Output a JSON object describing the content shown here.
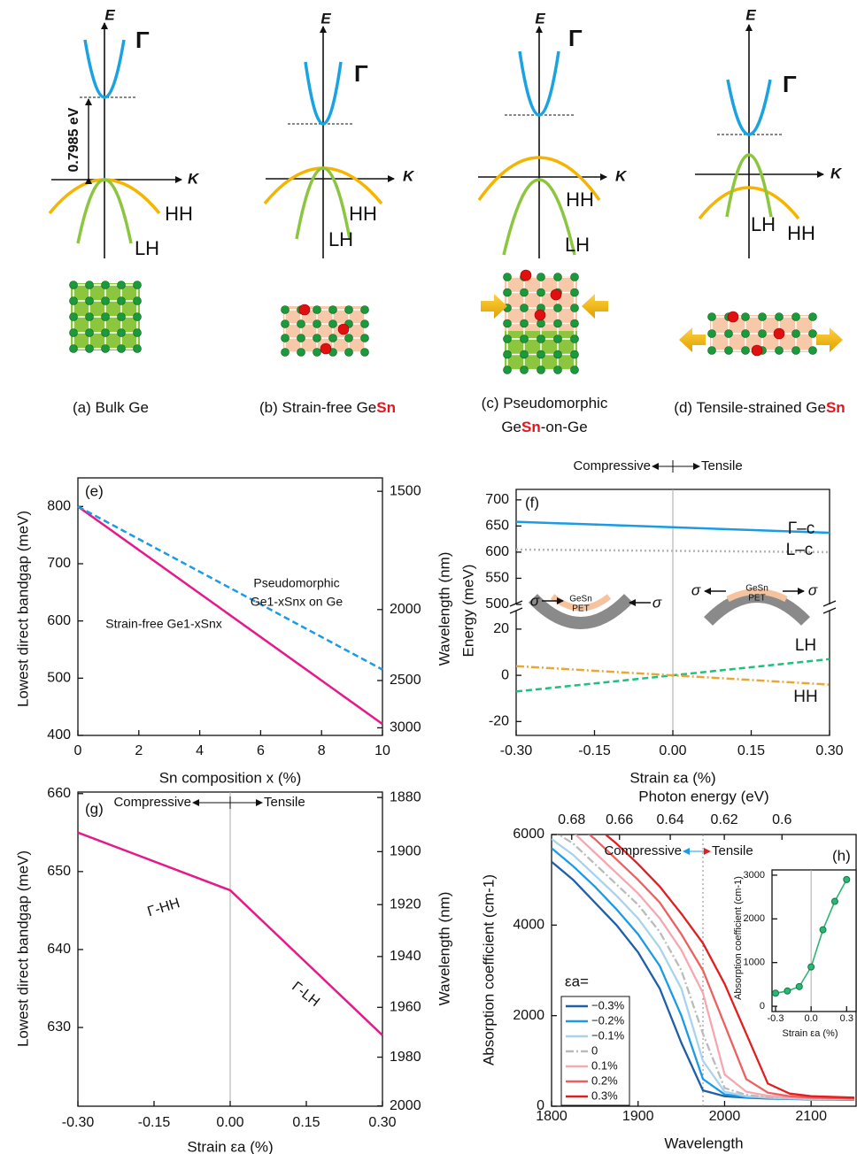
{
  "diagrams": [
    {
      "E": "E",
      "K": "K",
      "gamma": "Γ",
      "hh": "HH",
      "lh": "LH",
      "gap": "0.7985 eV",
      "caption": [
        [
          {
            "text": "(a) Bulk Ge"
          }
        ]
      ]
    },
    {
      "E": "E",
      "K": "K",
      "gamma": "Γ",
      "hh": "HH",
      "lh": "LH",
      "caption": [
        [
          {
            "text": "(b) Strain-free Ge"
          },
          {
            "text": "Sn",
            "color": "#e8141c"
          }
        ]
      ]
    },
    {
      "E": "E",
      "K": "K",
      "gamma": "Γ",
      "hh": "HH",
      "lh": "LH",
      "caption": [
        [
          {
            "text": "(c) Pseudomorphic"
          }
        ],
        [
          {
            "text": "Ge"
          },
          {
            "text": "Sn",
            "color": "#e8141c"
          },
          {
            "text": "-on-Ge"
          }
        ]
      ]
    },
    {
      "E": "E",
      "K": "K",
      "gamma": "Γ",
      "hh": "HH",
      "lh": "LH",
      "caption": [
        [
          {
            "text": "(d) Tensile-strained Ge"
          },
          {
            "text": "Sn",
            "color": "#e8141c"
          }
        ]
      ]
    }
  ],
  "chart_data": [
    {
      "type": "line",
      "label": "(e)",
      "xlabel": "Sn composition x (%)",
      "ylabel": "Lowest direct bandgap (meV)",
      "y2label": "Wavelength (nm)",
      "xlim": [
        0,
        10
      ],
      "xticks": [
        0,
        2,
        4,
        6,
        8,
        10
      ],
      "ylim": [
        400,
        850
      ],
      "yticks": [
        400,
        500,
        600,
        700,
        800
      ],
      "y2lim": [
        3099.6,
        1458.6
      ],
      "y2scale": "reciprocal",
      "y2ticks": [
        1500,
        2000,
        2500,
        3000
      ],
      "x": [
        0,
        10
      ],
      "series": [
        {
          "name": [
            "Strain-free Ge1-xSnx"
          ],
          "color": "#e6198a",
          "style": "solid",
          "values": [
            800,
            420
          ]
        },
        {
          "name": [
            "Pseudomorphic",
            "Ge1-xSnx on Ge"
          ],
          "color": "#1a9be6",
          "style": "dashed",
          "values": [
            800,
            515
          ]
        }
      ]
    },
    {
      "type": "line",
      "label": "(f)",
      "xlabel": "Strain εa (%)",
      "ylabel": "Energy (meV)",
      "compressive": "Compressive",
      "tensile": "Tensile",
      "xlim": [
        -0.3,
        0.3
      ],
      "xticks": [
        {
          "value": -0.3,
          "label": "-0.30"
        },
        -0.15,
        {
          "value": 0,
          "label": "0.00"
        },
        0.15,
        {
          "value": 0.3,
          "label": "0.30"
        }
      ],
      "x": [
        -0.3,
        0.3
      ],
      "inset_labels": {
        "sigma": "σ",
        "film": "GeSn",
        "substrate": "PET"
      },
      "panels": [
        {
          "ylim": [
            500,
            720
          ],
          "yticks": [
            500,
            550,
            600,
            650,
            700
          ],
          "series": [
            {
              "name": "Γ–c",
              "color": "#1a9be6",
              "style": "solid",
              "values": [
                658,
                637
              ]
            },
            {
              "name": "L–c",
              "color": "#b5b5b5",
              "style": "dotted",
              "values": [
                605,
                600
              ]
            }
          ]
        },
        {
          "ylim": [
            -26,
            28
          ],
          "yticks": [
            -20,
            0,
            20
          ],
          "series": [
            {
              "name": "LH",
              "color": "#1fbf7f",
              "style": "dashed",
              "values": [
                -7,
                7
              ]
            },
            {
              "name": "HH",
              "color": "#e8a838",
              "style": "dashdot",
              "values": [
                4,
                -4
              ]
            }
          ]
        }
      ]
    },
    {
      "type": "line",
      "label": "(g)",
      "xlabel": "Strain εa (%)",
      "ylabel": "Lowest direct bandgap (meV)",
      "y2label": "Wavelength (nm)",
      "compressive": "Compressive",
      "tensile": "Tensile",
      "xlim": [
        -0.3,
        0.3
      ],
      "xticks": [
        {
          "value": -0.3,
          "label": "-0.30"
        },
        -0.15,
        {
          "value": 0,
          "label": "0.00"
        },
        0.15,
        {
          "value": 0.3,
          "label": "0.30"
        }
      ],
      "ylim": [
        619.9,
        660.2
      ],
      "yticks": [
        630,
        640,
        650,
        660
      ],
      "y2lim": [
        2000.1,
        1878
      ],
      "y2scale": "reciprocal",
      "y2ticks": [
        1880,
        1900,
        1920,
        1940,
        1960,
        1980,
        2000
      ],
      "x": [
        -0.3,
        0,
        0.3
      ],
      "series": [
        {
          "color": "#e6198a",
          "style": "solid",
          "values": [
            655,
            647.6,
            629
          ]
        }
      ],
      "segment_labels": [
        "Γ-HH",
        "Γ-LH"
      ]
    },
    {
      "type": "line",
      "label": "(h)",
      "xlabel": "Wavelength",
      "x2label": "Photon energy (eV)",
      "ylabel": "Absorption coefficient (cm-1)",
      "compressive": "Compressive",
      "tensile": "Tensile",
      "legend_title": "εa=",
      "legend": "lower left",
      "xlim": [
        1800,
        2152
      ],
      "xticks": [
        1800,
        1900,
        2000,
        2100
      ],
      "x2lim": [
        0.6888,
        0.5761
      ],
      "x2scale": "reciprocal",
      "x2ticks": [
        0.68,
        0.66,
        0.64,
        0.62,
        0.6
      ],
      "ylim": [
        0,
        6000
      ],
      "yticks": [
        0,
        2000,
        4000,
        6000
      ],
      "marker_x": 1975,
      "x": [
        1800,
        1825,
        1850,
        1875,
        1900,
        1925,
        1950,
        1975,
        2000,
        2025,
        2050,
        2075,
        2100,
        2150
      ],
      "series": [
        {
          "name": "−0.3%",
          "color": "#1f5fa8",
          "style": "solid",
          "values": [
            5400,
            5000,
            4500,
            4000,
            3400,
            2600,
            1400,
            350,
            220,
            190,
            170,
            160,
            150,
            140
          ]
        },
        {
          "name": "−0.2%",
          "color": "#1a9be6",
          "style": "solid",
          "values": [
            5700,
            5300,
            4850,
            4350,
            3800,
            3100,
            2000,
            600,
            260,
            200,
            180,
            165,
            155,
            145
          ]
        },
        {
          "name": "−0.1%",
          "color": "#a8d3ee",
          "style": "solid",
          "values": [
            5900,
            5550,
            5100,
            4650,
            4150,
            3500,
            2600,
            1000,
            320,
            220,
            190,
            170,
            160,
            150
          ]
        },
        {
          "name": "0",
          "color": "#bbbbbb",
          "style": "dashdot",
          "values": [
            6100,
            5800,
            5350,
            4900,
            4450,
            3850,
            3000,
            1600,
            400,
            250,
            200,
            180,
            165,
            155
          ]
        },
        {
          "name": "0.1%",
          "color": "#f5a8b0",
          "style": "solid",
          "values": [
            6400,
            6050,
            5600,
            5150,
            4700,
            4150,
            3450,
            2500,
            700,
            320,
            230,
            195,
            175,
            160
          ]
        },
        {
          "name": "0.2%",
          "color": "#ee6060",
          "style": "solid",
          "values": [
            6700,
            6300,
            5900,
            5450,
            5000,
            4500,
            3800,
            3000,
            1800,
            600,
            300,
            220,
            190,
            170
          ]
        },
        {
          "name": "0.3%",
          "color": "#e02020",
          "style": "solid",
          "values": [
            7100,
            6700,
            6200,
            5800,
            5350,
            4850,
            4250,
            3600,
            2700,
            1600,
            500,
            280,
            220,
            190
          ]
        }
      ],
      "inset": {
        "type": "scatter",
        "xlabel": "Strain εa (%)",
        "ylabel": "Absorption coefficient (cm-1)",
        "xlim": [
          -0.33,
          0.38
        ],
        "xticks": [
          -0.3,
          {
            "value": 0,
            "label": "0.0"
          },
          0.3
        ],
        "ylim": [
          -120,
          3120
        ],
        "yticks": [
          0,
          1000,
          2000,
          3000
        ],
        "x": [
          -0.3,
          -0.2,
          -0.1,
          0,
          0.1,
          0.2,
          0.3
        ],
        "values": [
          300,
          350,
          450,
          900,
          1750,
          2400,
          2900
        ],
        "color": "#2bb673"
      }
    }
  ]
}
